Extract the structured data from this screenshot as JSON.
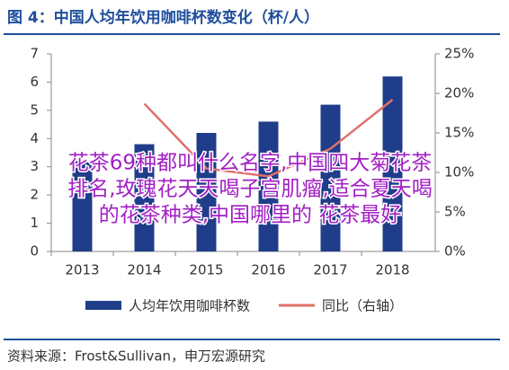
{
  "chart_data": {
    "type": "bar_line",
    "title": "图 4：中国人均年饮用咖啡杯数变化（杯/人）",
    "source": "资料来源：Frost&Sullivan，申万宏源研究",
    "annotations": [
      "花茶69种都叫什么名字,中国四大菊花茶",
      "排名,玫瑰花天天喝子宫肌瘤,适合夏天喝",
      "的花茶种类,中国哪里的 花茶最好"
    ],
    "categories": [
      "2013",
      "2014",
      "2015",
      "2016",
      "2017",
      "2018"
    ],
    "series": [
      {
        "name": "人均年饮用咖啡杯数",
        "type": "bar",
        "color": "#1f3d8a",
        "values": [
          3.2,
          3.8,
          4.2,
          4.6,
          5.2,
          6.2
        ]
      },
      {
        "name": "同比（右轴）",
        "type": "line",
        "axis": "y2",
        "color": "#e0706a",
        "values": [
          null,
          18.7,
          10.5,
          9.5,
          13.0,
          19.2
        ]
      }
    ],
    "ylim": [
      0,
      7
    ],
    "yticks": [
      0,
      1,
      2,
      3,
      4,
      5,
      6,
      7
    ],
    "y2lim": [
      0,
      25
    ],
    "y2ticks": [
      {
        "value": 0,
        "label": "0%"
      },
      {
        "value": 5,
        "label": "5%"
      },
      {
        "value": 10,
        "label": "10%"
      },
      {
        "value": 15,
        "label": "15%"
      },
      {
        "value": 20,
        "label": "20%"
      },
      {
        "value": 25,
        "label": "25%"
      }
    ],
    "legend": "bottom"
  }
}
